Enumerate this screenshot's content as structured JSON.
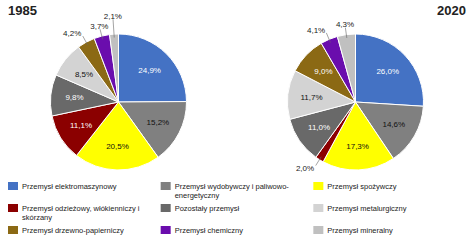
{
  "chart_data": {
    "type": "pie",
    "categories": [
      "Przemysł elektromaszynowy",
      "Przemysł wydobywczy i paliwowo-\nenergetyczny",
      "Przemysł spożywczy",
      "Przemysł odzieżowy, włókienniczy i\nskórzany",
      "Pozostały przemysł",
      "Przemysł metalurgiczny",
      "Przemysł drzewno-papierniczy",
      "Przemysł chemiczny",
      "Przemysł mineralny"
    ],
    "colors": [
      "#4472C4",
      "#808080",
      "#FFFF00",
      "#8B0000",
      "#696969",
      "#D3D3D3",
      "#8B6914",
      "#6A0DAD",
      "#C0C0C0"
    ],
    "series": [
      {
        "name": "1985",
        "values": [
          24.9,
          15.2,
          20.5,
          11.1,
          9.8,
          8.5,
          4.2,
          3.7,
          2.1
        ],
        "value_labels": [
          "24,9%",
          "15,2%",
          "20,5%",
          "11,1%",
          "9,8%",
          "8,5%",
          "4,2%",
          "3,7%",
          "2,1%"
        ]
      },
      {
        "name": "2020",
        "values": [
          26.0,
          14.6,
          17.3,
          2.0,
          11.0,
          11.7,
          9.0,
          4.1,
          4.3
        ],
        "value_labels": [
          "26,0%",
          "14,6%",
          "17,3%",
          "2,0%",
          "11,0%",
          "11,7%",
          "9,0%",
          "4,1%",
          "4,3%"
        ]
      }
    ],
    "data_labels": true,
    "legend": "bottom"
  }
}
